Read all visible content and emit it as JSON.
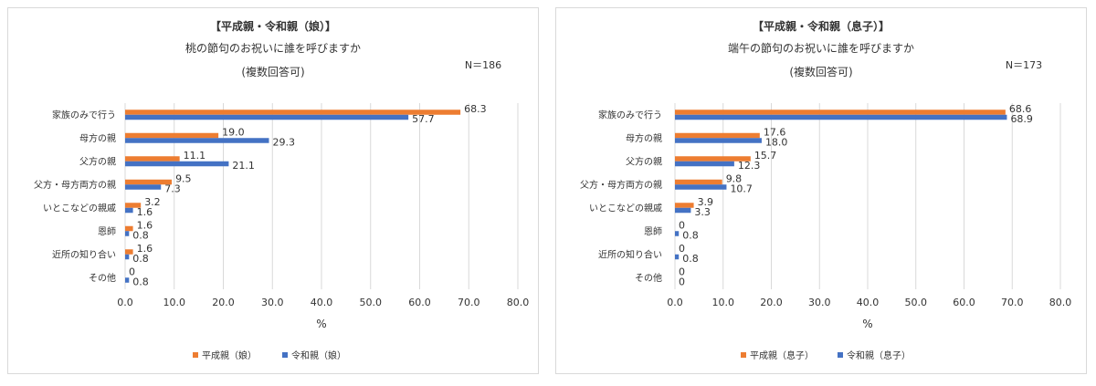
{
  "chart_data": [
    {
      "type": "bar",
      "title": "【平成親・令和親（娘）】",
      "subtitle": "桃の節句のお祝いに誰を呼びますか",
      "note": "(複数回答可)",
      "n_label": "N＝186",
      "xlabel": "%",
      "xlim": [
        0,
        80
      ],
      "xticks": [
        "0.0",
        "10.0",
        "20.0",
        "30.0",
        "40.0",
        "50.0",
        "60.0",
        "70.0",
        "80.0"
      ],
      "grid": true,
      "legend_position": "bottom",
      "categories": [
        "家族のみで行う",
        "母方の親",
        "父方の親",
        "父方・母方両方の親",
        "いとこなどの親戚",
        "恩師",
        "近所の知り合い",
        "その他"
      ],
      "series": [
        {
          "name": "平成親（娘）",
          "color": "#ed7d31",
          "values": [
            68.3,
            19.0,
            11.1,
            9.5,
            3.2,
            1.6,
            1.6,
            0
          ]
        },
        {
          "name": "令和親（娘）",
          "color": "#4472c4",
          "values": [
            57.7,
            29.3,
            21.1,
            7.3,
            1.6,
            0.8,
            0.8,
            0.8
          ]
        }
      ]
    },
    {
      "type": "bar",
      "title": "【平成親・令和親（息子）】",
      "subtitle": "端午の節句のお祝いに誰を呼びますか",
      "note": "(複数回答可)",
      "n_label": "N＝173",
      "xlabel": "%",
      "xlim": [
        0,
        80
      ],
      "xticks": [
        "0.0",
        "10.0",
        "20.0",
        "30.0",
        "40.0",
        "50.0",
        "60.0",
        "70.0",
        "80.0"
      ],
      "grid": true,
      "legend_position": "bottom",
      "categories": [
        "家族のみで行う",
        "母方の親",
        "父方の親",
        "父方・母方両方の親",
        "いとこなどの親戚",
        "恩師",
        "近所の知り合い",
        "その他"
      ],
      "series": [
        {
          "name": "平成親（息子）",
          "color": "#ed7d31",
          "values": [
            68.6,
            17.6,
            15.7,
            9.8,
            3.9,
            0,
            0,
            0
          ]
        },
        {
          "name": "令和親（息子）",
          "color": "#4472c4",
          "values": [
            68.9,
            18.0,
            12.3,
            10.7,
            3.3,
            0.8,
            0.8,
            0
          ]
        }
      ]
    }
  ]
}
